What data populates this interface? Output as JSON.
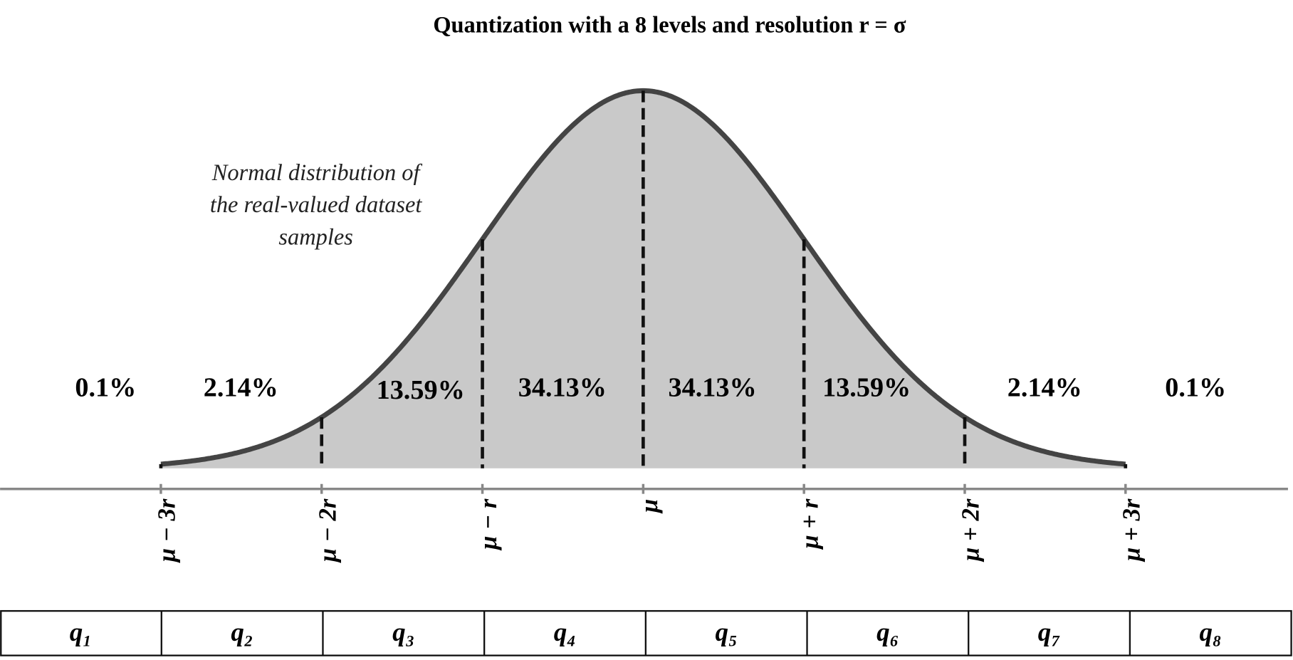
{
  "title": "Quantization with a 8 levels and  resolution r = σ",
  "annotation": [
    "Normal distribution of",
    "the real-valued dataset",
    "samples"
  ],
  "regions": [
    "0.1%",
    "2.14%",
    "13.59%",
    "34.13%",
    "34.13%",
    "13.59%",
    "2.14%",
    "0.1%"
  ],
  "axis_labels": [
    "μ − 3r",
    "μ − 2r",
    "μ − r",
    "μ",
    "μ + r",
    "μ + 2r",
    "μ + 3r"
  ],
  "levels": [
    "q₁",
    "q₂",
    "q₃",
    "q₄",
    "q₅",
    "q₆",
    "q₇",
    "q₈"
  ]
}
